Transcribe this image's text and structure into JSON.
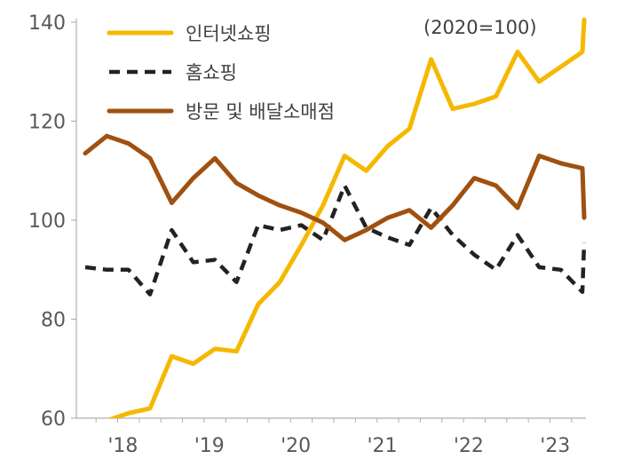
{
  "chart_data": {
    "type": "line",
    "note": "(2020=100)",
    "ylim": [
      60,
      140
    ],
    "yticks": [
      60,
      80,
      100,
      120,
      140
    ],
    "xlim": [
      0,
      23
    ],
    "x_tick_labels": [
      {
        "label": "'18",
        "x": 1
      },
      {
        "label": "'19",
        "x": 5
      },
      {
        "label": "'20",
        "x": 9
      },
      {
        "label": "'21",
        "x": 13
      },
      {
        "label": "'22",
        "x": 17
      },
      {
        "label": "'23",
        "x": 21
      }
    ],
    "x": [
      0,
      1,
      2,
      3,
      4,
      5,
      6,
      7,
      8,
      9,
      10,
      11,
      12,
      13,
      14,
      15,
      16,
      17,
      18,
      19,
      20,
      21,
      22,
      23
    ],
    "series": [
      {
        "name": "인터넷쇼핑",
        "color": "#F5B800",
        "dash": "solid",
        "values": [
          57.5,
          59.5,
          61.0,
          62.0,
          72.5,
          71.0,
          74.0,
          73.5,
          83.0,
          87.5,
          95.0,
          103.0,
          113.0,
          110.0,
          115.0,
          118.5,
          132.5,
          122.5,
          123.5,
          125.0,
          134.0,
          128.0,
          131.0,
          134.0
        ]
      },
      {
        "name": "홈쇼핑",
        "color": "#222222",
        "dash": "dashed",
        "values": [
          90.5,
          90.0,
          90.0,
          85.0,
          98.0,
          91.5,
          92.0,
          87.5,
          99.0,
          98.0,
          99.0,
          96.0,
          107.0,
          98.5,
          96.5,
          95.0,
          102.5,
          97.0,
          93.0,
          90.0,
          97.0,
          90.5,
          90.0,
          85.5
        ]
      },
      {
        "name": "방문 및 배달소매점",
        "color": "#A0500F",
        "dash": "solid",
        "values": [
          113.5,
          117.0,
          115.5,
          112.5,
          103.5,
          108.5,
          112.5,
          107.5,
          105.0,
          103.0,
          101.5,
          99.5,
          96.0,
          98.0,
          100.5,
          102.0,
          98.5,
          103.0,
          108.5,
          107.0,
          102.5,
          113.0,
          111.5,
          110.5
        ]
      }
    ],
    "end_points": {
      "인터넷쇼핑": 140.5,
      "홈쇼핑": 95.5,
      "방문 및 배달소매점": 100.5
    },
    "legend_position": "top-left",
    "grid": false
  }
}
